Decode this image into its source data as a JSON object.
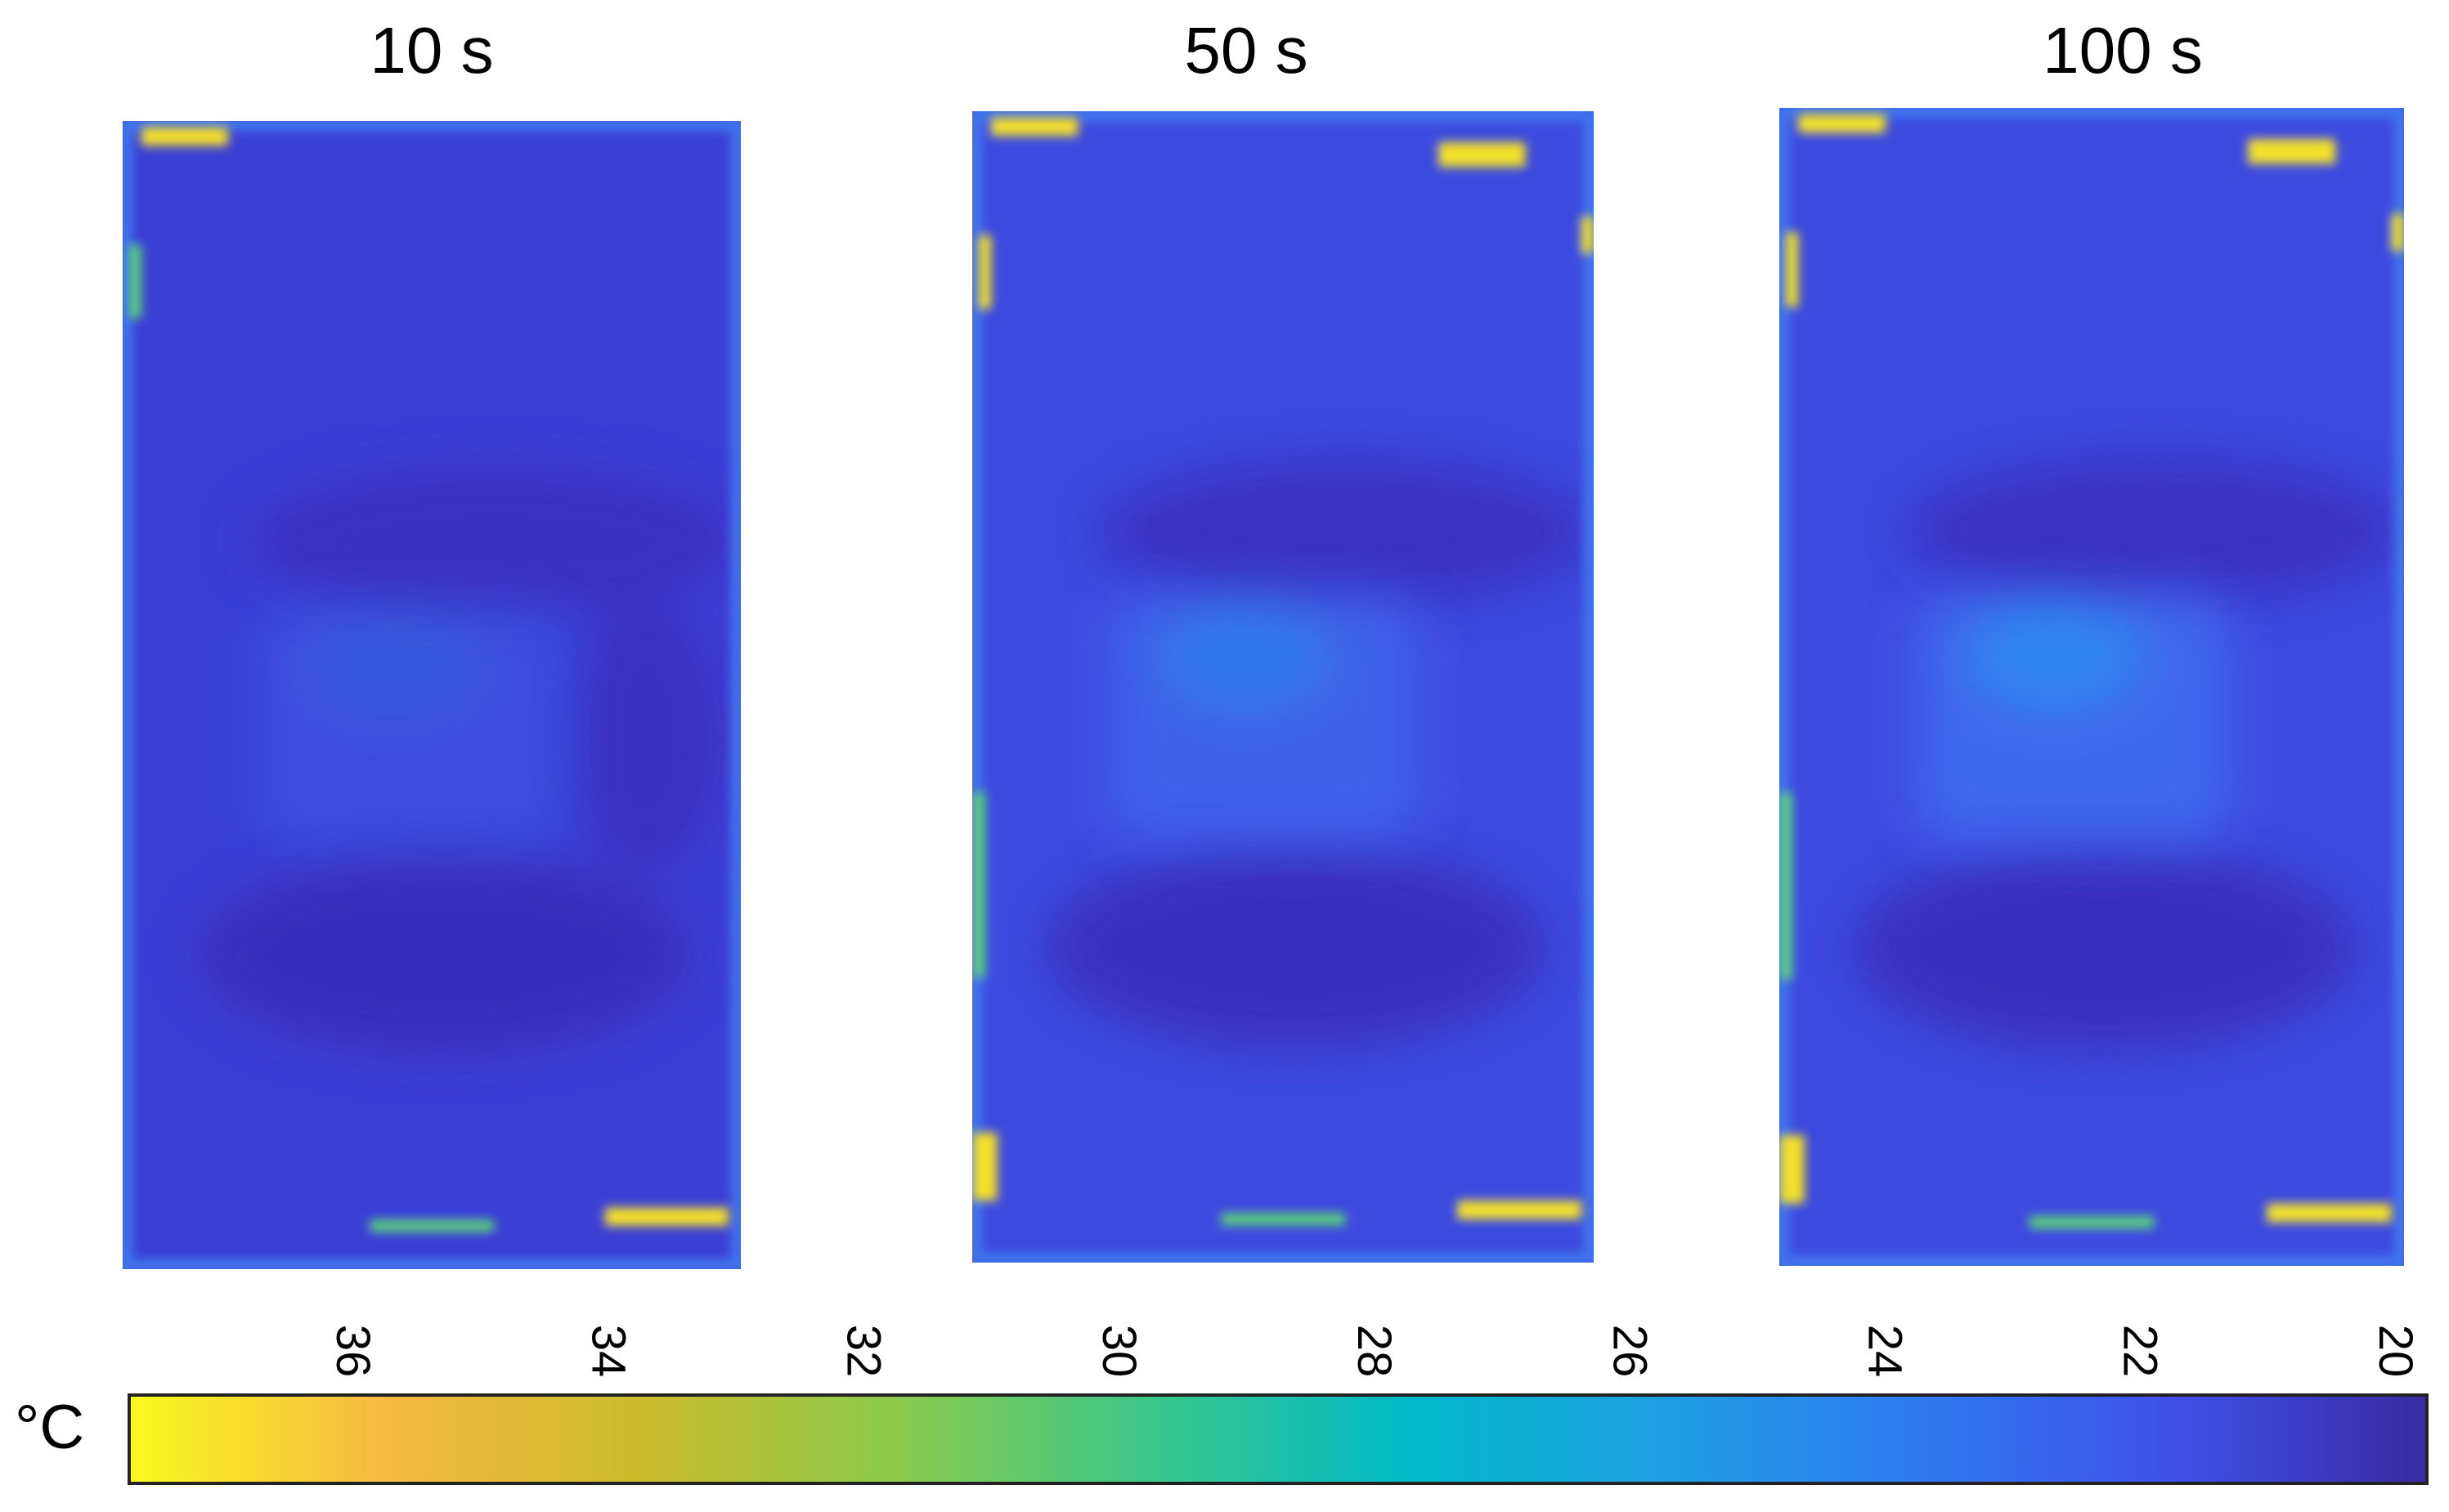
{
  "panels": [
    {
      "title": "10 s",
      "heat_level": 0.15
    },
    {
      "title": "50 s",
      "heat_level": 0.6
    },
    {
      "title": "100 s",
      "heat_level": 0.85
    }
  ],
  "colorbar": {
    "unit": "°C",
    "range": [
      19.5,
      37.5
    ],
    "ticks": [
      "36",
      "34",
      "32",
      "30",
      "28",
      "26",
      "24",
      "22",
      "20"
    ],
    "colormap": [
      "#f9f91e",
      "#f6b943",
      "#cbba2a",
      "#8ccb4c",
      "#3cc78a",
      "#00b9c7",
      "#1f9fe3",
      "#2f7af0",
      "#3f50e8",
      "#3a2aa4"
    ]
  }
}
